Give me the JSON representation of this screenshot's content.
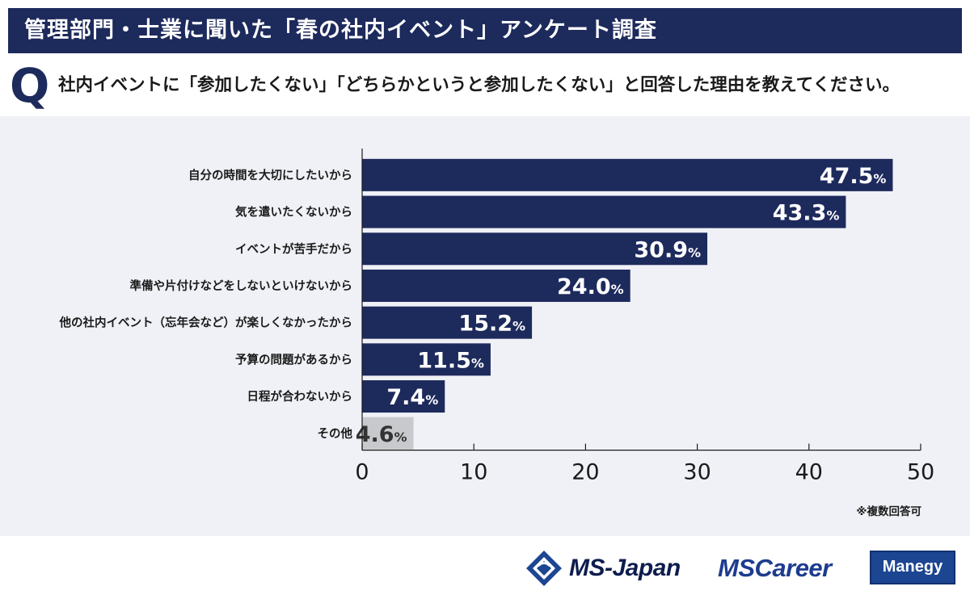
{
  "header": {
    "title": "管理部門・士業に聞いた「春の社内イベント」アンケート調査",
    "q_mark": "Q",
    "question": "社内イベントに「参加したくない」「どちらかというと参加したくない」と回答した理由を教えてください。"
  },
  "chart_data": {
    "type": "bar",
    "orientation": "horizontal",
    "categories": [
      "自分の時間を大切にしたいから",
      "気を遣いたくないから",
      "イベントが苦手だから",
      "準備や片付けなどをしないといけないから",
      "他の社内イベント（忘年会など）が楽しくなかったから",
      "予算の問題があるから",
      "日程が合わないから",
      "その他"
    ],
    "values": [
      47.5,
      43.3,
      30.9,
      24.0,
      15.2,
      11.5,
      7.4,
      4.6
    ],
    "labels": [
      "47.5",
      "43.3",
      "30.9",
      "24.0",
      "15.2",
      "11.5",
      "7.4",
      "4.6"
    ],
    "unit": "%",
    "xlim": [
      0,
      50
    ],
    "xticks": [
      "0",
      "10",
      "20",
      "30",
      "40",
      "50"
    ],
    "bar_color": "#1d2a5c",
    "other_color": "#c8c9cc",
    "title": "",
    "xlabel": "",
    "ylabel": ""
  },
  "note": "※複数回答可",
  "footer": {
    "logo1": "MS-Japan",
    "logo2": "MSCareer",
    "logo3": "Manegy"
  }
}
